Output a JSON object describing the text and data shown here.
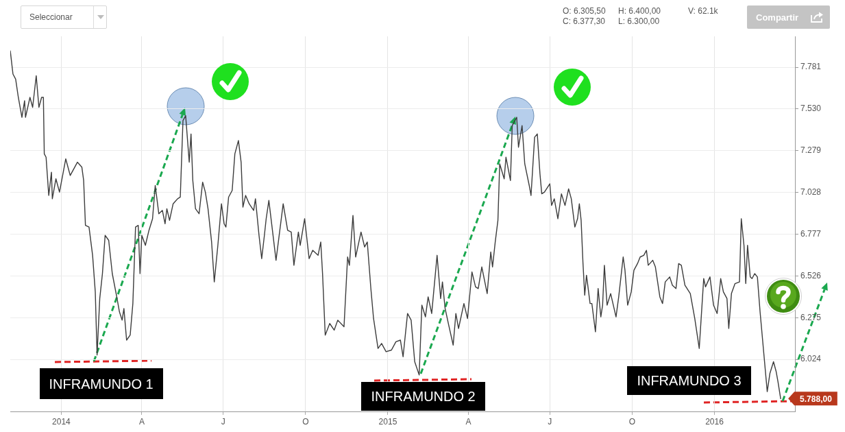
{
  "chart_data": {
    "type": "line",
    "color": "#3c3c3c",
    "marker": "none",
    "grid": true,
    "x": [
      "2013-11-05",
      "2013-11-08",
      "2013-11-11",
      "2013-11-14",
      "2013-11-18",
      "2013-11-21",
      "2013-11-22",
      "2013-11-27",
      "2013-11-30",
      "2013-12-04",
      "2013-12-07",
      "2013-12-10",
      "2013-12-12",
      "2013-12-13",
      "2013-12-15",
      "2013-12-18",
      "2013-12-21",
      "2013-12-22",
      "2013-12-26",
      "2013-12-30",
      "2014-01-06",
      "2014-01-11",
      "2014-01-19",
      "2014-01-24",
      "2014-01-26",
      "2014-01-28",
      "2014-02-01",
      "2014-02-05",
      "2014-02-08",
      "2014-02-10",
      "2014-02-13",
      "2014-02-16",
      "2014-02-19",
      "2014-02-23",
      "2014-02-27",
      "2014-03-04",
      "2014-03-07",
      "2014-03-10",
      "2014-03-12",
      "2014-03-15",
      "2014-03-19",
      "2014-03-22",
      "2014-03-25",
      "2014-03-28",
      "2014-03-30",
      "2014-04-01",
      "2014-04-05",
      "2014-04-09",
      "2014-04-13",
      "2014-04-16",
      "2014-04-20",
      "2014-04-24",
      "2014-04-27",
      "2014-04-29",
      "2014-05-02",
      "2014-05-06",
      "2014-05-11",
      "2014-05-14",
      "2014-05-17",
      "2014-05-20",
      "2014-05-24",
      "2014-05-26",
      "2014-05-28",
      "2014-05-31",
      "2014-06-04",
      "2014-06-08",
      "2014-06-11",
      "2014-06-14",
      "2014-06-18",
      "2014-06-21",
      "2014-06-25",
      "2014-06-29",
      "2014-07-02",
      "2014-07-04",
      "2014-07-07",
      "2014-07-11",
      "2014-07-14",
      "2014-07-18",
      "2014-07-21",
      "2014-07-23",
      "2014-07-26",
      "2014-07-30",
      "2014-08-04",
      "2014-08-06",
      "2014-08-10",
      "2014-08-13",
      "2014-08-16",
      "2014-08-18",
      "2014-08-21",
      "2014-08-25",
      "2014-08-29",
      "2014-09-06",
      "2014-09-11",
      "2014-09-15",
      "2014-09-18",
      "2014-09-23",
      "2014-09-25",
      "2014-09-30",
      "2014-10-05",
      "2014-10-09",
      "2014-10-15",
      "2014-10-18",
      "2014-10-20",
      "2014-10-23",
      "2014-10-28",
      "2014-11-02",
      "2014-11-06",
      "2014-11-13",
      "2014-11-17",
      "2014-11-19",
      "2014-11-23",
      "2014-11-26",
      "2014-12-02",
      "2014-12-06",
      "2014-12-09",
      "2014-12-13",
      "2014-12-16",
      "2014-12-21",
      "2014-12-25",
      "2014-12-30",
      "2015-01-05",
      "2015-01-10",
      "2015-01-15",
      "2015-01-18",
      "2015-01-23",
      "2015-01-27",
      "2015-01-31",
      "2015-02-05",
      "2015-02-08",
      "2015-02-12",
      "2015-02-15",
      "2015-02-19",
      "2015-02-25",
      "2015-03-01",
      "2015-03-03",
      "2015-03-06",
      "2015-03-10",
      "2015-03-15",
      "2015-03-18",
      "2015-03-21",
      "2015-03-27",
      "2015-03-31",
      "2015-04-05",
      "2015-04-09",
      "2015-04-12",
      "2015-04-16",
      "2015-04-22",
      "2015-04-26",
      "2015-04-28",
      "2015-05-01",
      "2015-05-04",
      "2015-05-06",
      "2015-05-11",
      "2015-05-13",
      "2015-05-18",
      "2015-05-20",
      "2015-05-25",
      "2015-05-27",
      "2015-05-31",
      "2015-06-03",
      "2015-06-08",
      "2015-06-10",
      "2015-06-14",
      "2015-06-17",
      "2015-06-20",
      "2015-06-22",
      "2015-06-25",
      "2015-07-01",
      "2015-07-03",
      "2015-07-06",
      "2015-07-10",
      "2015-07-14",
      "2015-07-18",
      "2015-07-22",
      "2015-07-25",
      "2015-07-29",
      "2015-08-01",
      "2015-08-03",
      "2015-08-05",
      "2015-08-07",
      "2015-08-09",
      "2015-08-11",
      "2015-08-15",
      "2015-08-17",
      "2015-08-21",
      "2015-08-24",
      "2015-08-27",
      "2015-08-29",
      "2015-08-31",
      "2015-09-03",
      "2015-09-07",
      "2015-09-10",
      "2015-09-13",
      "2015-09-16",
      "2015-09-21",
      "2015-09-23",
      "2015-09-26",
      "2015-09-30",
      "2015-10-03",
      "2015-10-07",
      "2015-10-10",
      "2015-10-14",
      "2015-10-17",
      "2015-10-19",
      "2015-10-24",
      "2015-10-27",
      "2015-11-01",
      "2015-11-04",
      "2015-11-07",
      "2015-11-12",
      "2015-11-15",
      "2015-11-19",
      "2015-11-22",
      "2015-11-25",
      "2015-11-29",
      "2015-12-05",
      "2015-12-10",
      "2015-12-15",
      "2015-12-20",
      "2015-12-22",
      "2015-12-27",
      "2015-12-31",
      "2016-01-04",
      "2016-01-08",
      "2016-01-11",
      "2016-01-15",
      "2016-01-17",
      "2016-01-20",
      "2016-01-24",
      "2016-01-29",
      "2016-01-31",
      "2016-02-03",
      "2016-02-05",
      "2016-02-07",
      "2016-02-10",
      "2016-02-12",
      "2016-02-15",
      "2016-02-18",
      "2016-02-21",
      "2016-02-25",
      "2016-02-29",
      "2016-03-03",
      "2016-03-07",
      "2016-03-10",
      "2016-03-12",
      "2016-03-15"
    ],
    "values": [
      7880,
      7740,
      7710,
      7600,
      7480,
      7580,
      7480,
      7600,
      7540,
      7730,
      7540,
      7600,
      7600,
      7260,
      7240,
      7010,
      7150,
      6990,
      7110,
      7030,
      7230,
      7130,
      7210,
      7180,
      7100,
      6830,
      6820,
      6650,
      6430,
      6050,
      6390,
      6540,
      6770,
      6740,
      6540,
      6400,
      6310,
      6260,
      6330,
      6140,
      6170,
      6360,
      6820,
      6830,
      6540,
      6770,
      6710,
      6800,
      6870,
      7070,
      6900,
      6920,
      6840,
      6930,
      6860,
      6960,
      6990,
      7000,
      7460,
      7490,
      7210,
      7380,
      7100,
      6930,
      6900,
      7090,
      7030,
      6930,
      6730,
      6490,
      6710,
      6960,
      6840,
      6820,
      7000,
      7040,
      7260,
      7340,
      7210,
      6940,
      7010,
      6960,
      6920,
      6990,
      6770,
      6630,
      6770,
      6870,
      6980,
      6800,
      6620,
      6960,
      6800,
      6790,
      6590,
      6790,
      6710,
      6870,
      6630,
      6680,
      6650,
      6730,
      6540,
      6170,
      6240,
      6200,
      6260,
      6220,
      6640,
      6590,
      6890,
      6640,
      6790,
      6700,
      6730,
      6450,
      6270,
      6090,
      6120,
      6070,
      6080,
      6130,
      6140,
      6040,
      6300,
      6260,
      6010,
      5930,
      6350,
      6280,
      6400,
      6300,
      6650,
      6390,
      6490,
      6330,
      6230,
      6110,
      6300,
      6210,
      6360,
      6270,
      6550,
      6460,
      6450,
      6580,
      6420,
      6670,
      6580,
      6730,
      6860,
      7200,
      7110,
      7240,
      7100,
      7430,
      7480,
      7300,
      7430,
      7200,
      7070,
      7010,
      7360,
      7380,
      7140,
      7020,
      7030,
      7080,
      6950,
      6990,
      6870,
      7020,
      6950,
      7050,
      6990,
      6820,
      6870,
      6960,
      6860,
      6610,
      6410,
      6530,
      6360,
      6360,
      6190,
      6450,
      6280,
      6350,
      6590,
      6350,
      6420,
      6350,
      6280,
      6400,
      6640,
      6560,
      6350,
      6430,
      6560,
      6600,
      6640,
      6650,
      6680,
      6590,
      6620,
      6580,
      6400,
      6360,
      6490,
      6520,
      6470,
      6450,
      6600,
      6590,
      6470,
      6420,
      6270,
      6090,
      6510,
      6460,
      6520,
      6350,
      6300,
      6510,
      6430,
      6390,
      6210,
      6420,
      6480,
      6490,
      6870,
      6710,
      6480,
      6710,
      6520,
      6510,
      6540,
      6520,
      6310,
      6070,
      5830,
      5940,
      6010,
      5950,
      5890,
      5788
    ],
    "xlim": [
      "2013-11-05",
      "2016-03-31"
    ],
    "xticks": [
      {
        "value": "2014-01-01",
        "label": "2014"
      },
      {
        "value": "2014-04-01",
        "label": "A"
      },
      {
        "value": "2014-07-01",
        "label": "J"
      },
      {
        "value": "2014-10-01",
        "label": "O"
      },
      {
        "value": "2015-01-01",
        "label": "2015"
      },
      {
        "value": "2015-04-01",
        "label": "A"
      },
      {
        "value": "2015-07-01",
        "label": "J"
      },
      {
        "value": "2015-10-01",
        "label": "O"
      },
      {
        "value": "2016-01-01",
        "label": "2016"
      }
    ],
    "ylim": [
      5711,
      7967
    ],
    "yticks": [
      {
        "value": 6024,
        "label": "6.024"
      },
      {
        "value": 6275,
        "label": "6.275"
      },
      {
        "value": 6526,
        "label": "6.526"
      },
      {
        "value": 6777,
        "label": "6.777"
      },
      {
        "value": 7028,
        "label": "7.028"
      },
      {
        "value": 7279,
        "label": "7.279"
      },
      {
        "value": 7530,
        "label": "7.530"
      },
      {
        "value": 7781,
        "label": "7.781"
      }
    ],
    "annotations": [
      "Seleccionar",
      "O: 6.305,50",
      "H: 6.400,00",
      "V: 62.1k",
      "C: 6.377,30",
      "L: 6.300,00",
      "Compartir",
      {
        "text": "INFRAMUNDO 1",
        "x": "2014-02-10",
        "y": 6050
      },
      {
        "text": "INFRAMUNDO 2",
        "x": "2015-02-05",
        "y": 5930
      },
      "INFRAMUNDO 3",
      {
        "text": "5.788,00",
        "x": "2016-03-15",
        "y": 5788
      }
    ]
  }
}
